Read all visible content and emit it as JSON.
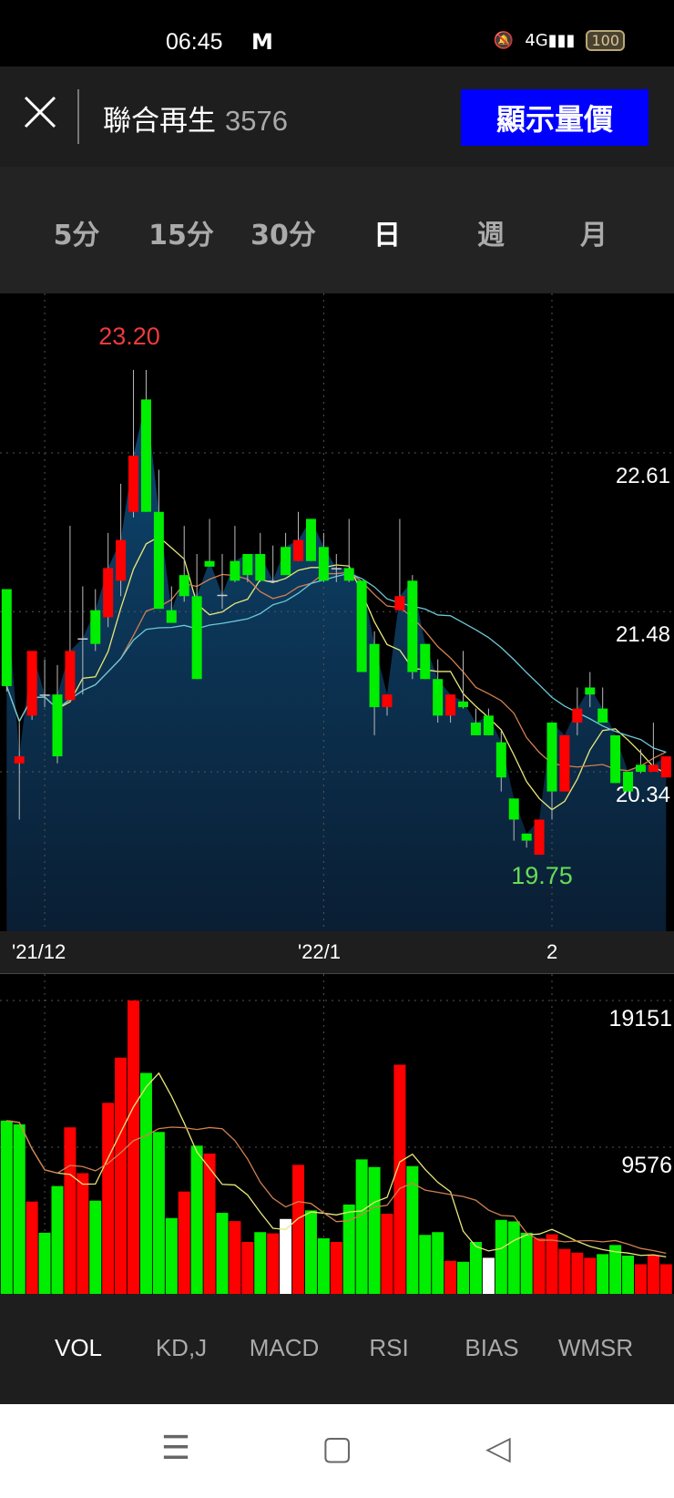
{
  "status_bar": {
    "time": "06:45",
    "notification_icon": "gmail-icon",
    "icons": [
      "vibrate-mute-icon",
      "signal-4g-icon"
    ],
    "battery": "100"
  },
  "header": {
    "close_icon": "close-icon",
    "stock_name": "聯合再生",
    "stock_code": "3576",
    "show_button": "顯示量價",
    "button_color": "#0000ff"
  },
  "period_tabs": [
    {
      "label": "5分",
      "selected": false
    },
    {
      "label": "15分",
      "selected": false
    },
    {
      "label": "30分",
      "selected": false
    },
    {
      "label": "日",
      "selected": true
    },
    {
      "label": "週",
      "selected": false
    },
    {
      "label": "月",
      "selected": false
    }
  ],
  "indicator_tabs": [
    {
      "label": "VOL",
      "selected": true
    },
    {
      "label": "KD,J",
      "selected": false
    },
    {
      "label": "MACD",
      "selected": false
    },
    {
      "label": "RSI",
      "selected": false
    },
    {
      "label": "BIAS",
      "selected": false
    },
    {
      "label": "WMSR",
      "selected": false
    }
  ],
  "nav_bar": [
    "menu-icon",
    "home-icon",
    "back-icon"
  ],
  "chart_data": [
    {
      "type": "candlestick",
      "price_ticks": [
        "22.61",
        "21.48",
        "20.34"
      ],
      "max_label": "23.20",
      "min_label": "19.75",
      "x_labels": [
        {
          "label": "'21/12",
          "index": 3
        },
        {
          "label": "'22/1",
          "index": 25
        },
        {
          "label": "2",
          "index": 43
        }
      ],
      "up_color": "#ff0000",
      "down_color": "#00ee00",
      "ma_colors": [
        "#e8e87a",
        "#d08050",
        "#6cc8d8"
      ],
      "ma_periods": [
        5,
        10,
        20
      ],
      "ohlc": [
        [
          21.64,
          21.64,
          20.91,
          20.95
        ],
        [
          20.4,
          20.69,
          20.0,
          20.45
        ],
        [
          20.74,
          21.2,
          20.71,
          21.2
        ],
        [
          20.89,
          21.14,
          20.8,
          20.89
        ],
        [
          20.89,
          21.1,
          20.4,
          20.45
        ],
        [
          20.85,
          22.09,
          20.84,
          21.2
        ],
        [
          21.29,
          21.66,
          20.89,
          21.29
        ],
        [
          21.49,
          21.64,
          21.2,
          21.25
        ],
        [
          21.44,
          22.04,
          21.37,
          21.79
        ],
        [
          21.7,
          22.39,
          21.59,
          21.99
        ],
        [
          22.19,
          23.2,
          22.15,
          22.59
        ],
        [
          22.99,
          23.2,
          22.19,
          22.19
        ],
        [
          22.19,
          22.49,
          21.5,
          21.5
        ],
        [
          21.49,
          21.66,
          21.4,
          21.4
        ],
        [
          21.74,
          22.09,
          21.55,
          21.59
        ],
        [
          21.59,
          21.89,
          21.0,
          21.0
        ],
        [
          21.84,
          22.14,
          21.8,
          21.8
        ],
        [
          21.6,
          21.89,
          21.5,
          21.6
        ],
        [
          21.84,
          22.09,
          21.69,
          21.7
        ],
        [
          21.89,
          21.89,
          21.69,
          21.74
        ],
        [
          21.89,
          22.04,
          21.69,
          21.7
        ],
        [
          21.7,
          21.95,
          21.7,
          21.7
        ],
        [
          21.94,
          22.04,
          21.74,
          21.74
        ],
        [
          21.84,
          22.19,
          21.84,
          21.99
        ],
        [
          22.14,
          22.14,
          21.84,
          21.84
        ],
        [
          21.94,
          22.04,
          21.69,
          21.7
        ],
        [
          21.79,
          21.89,
          21.69,
          21.79
        ],
        [
          21.79,
          22.14,
          21.69,
          21.7
        ],
        [
          21.7,
          21.7,
          21.05,
          21.05
        ],
        [
          21.25,
          21.34,
          20.6,
          20.8
        ],
        [
          20.8,
          20.89,
          20.74,
          20.89
        ],
        [
          21.49,
          22.14,
          21.49,
          21.59
        ],
        [
          21.7,
          21.74,
          21.0,
          21.05
        ],
        [
          21.25,
          21.25,
          21.0,
          21.0
        ],
        [
          21.0,
          21.14,
          20.69,
          20.74
        ],
        [
          20.74,
          20.89,
          20.69,
          20.89
        ],
        [
          20.84,
          21.2,
          20.79,
          20.8
        ],
        [
          20.69,
          20.79,
          20.6,
          20.6
        ],
        [
          20.74,
          20.79,
          20.6,
          20.6
        ],
        [
          20.55,
          20.63,
          20.2,
          20.3
        ],
        [
          20.15,
          20.15,
          19.85,
          20.0
        ],
        [
          19.9,
          19.9,
          19.8,
          19.85
        ],
        [
          19.75,
          20.0,
          19.75,
          20.0
        ],
        [
          20.69,
          20.69,
          20.0,
          20.2
        ],
        [
          20.2,
          20.6,
          20.2,
          20.6
        ],
        [
          20.69,
          20.94,
          20.6,
          20.79
        ],
        [
          20.94,
          21.05,
          20.8,
          20.89
        ],
        [
          20.79,
          20.94,
          20.69,
          20.69
        ],
        [
          20.6,
          20.6,
          20.26,
          20.26
        ],
        [
          20.34,
          20.34,
          20.2,
          20.2
        ],
        [
          20.39,
          20.5,
          20.33,
          20.34
        ],
        [
          20.34,
          20.69,
          20.34,
          20.39
        ],
        [
          20.3,
          20.45,
          20.3,
          20.45
        ]
      ]
    },
    {
      "type": "bar",
      "name": "VOL",
      "y_ticks": [
        "19151",
        "9576"
      ],
      "ylim": [
        0,
        19151
      ],
      "values": [
        11310,
        11070,
        6025,
        3990,
        7040,
        10870,
        7880,
        6085,
        12470,
        15420,
        19151,
        14420,
        10570,
        4950,
        6680,
        9675,
        9160,
        5290,
        4750,
        3390,
        4030,
        3950,
        4890,
        8420,
        5450,
        3630,
        3390,
        5830,
        8780,
        8280,
        5230,
        14960,
        8340,
        3850,
        4030,
        2155,
        2095,
        3390,
        2355,
        4830,
        4730,
        3990,
        3630,
        3890,
        2930,
        2690,
        2355,
        2595,
        3190,
        2495,
        1935,
        2535,
        1935
      ],
      "colors": [
        "g",
        "g",
        "r",
        "g",
        "g",
        "r",
        "r",
        "g",
        "r",
        "r",
        "r",
        "g",
        "g",
        "g",
        "r",
        "g",
        "r",
        "g",
        "r",
        "r",
        "g",
        "r",
        "w",
        "r",
        "g",
        "g",
        "r",
        "g",
        "g",
        "g",
        "r",
        "r",
        "g",
        "g",
        "g",
        "r",
        "g",
        "g",
        "w",
        "g",
        "g",
        "g",
        "r",
        "r",
        "r",
        "r",
        "r",
        "g",
        "g",
        "g",
        "r",
        "r",
        "r"
      ],
      "color_map": {
        "r": "#ff0000",
        "g": "#00ee00",
        "w": "#ffffff"
      }
    }
  ]
}
